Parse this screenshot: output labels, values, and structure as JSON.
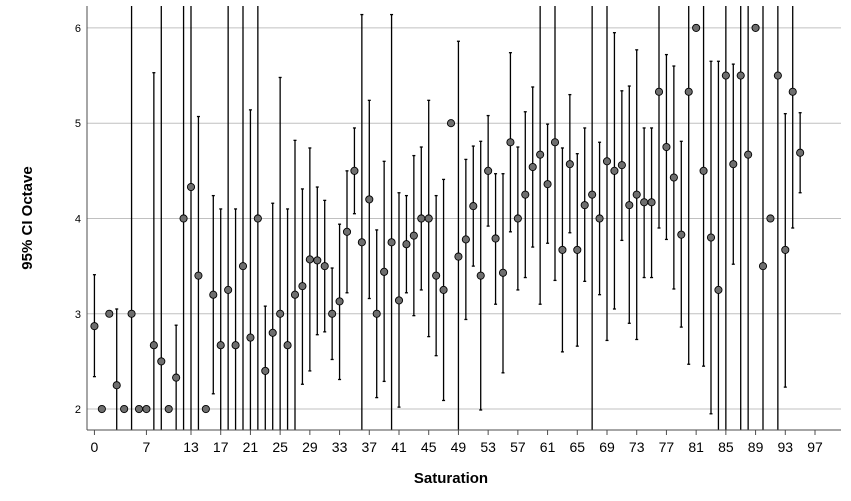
{
  "chart_data": {
    "type": "scatter",
    "title": "",
    "xlabel": "Saturation",
    "ylabel": "95% CI Octave",
    "xlim": [
      -1,
      100.5
    ],
    "ylim": [
      1.78,
      6.23
    ],
    "grid": "horizontal",
    "x_tick_values": [
      0,
      7,
      13,
      17,
      21,
      25,
      29,
      33,
      37,
      41,
      45,
      49,
      53,
      57,
      61,
      65,
      69,
      73,
      77,
      81,
      85,
      89,
      93,
      97
    ],
    "x_tick_labels": [
      "0",
      "7",
      "13",
      "17",
      "21",
      "25",
      "29",
      "33",
      "37",
      "41",
      "45",
      "49",
      "53",
      "57",
      "61",
      "65",
      "69",
      "73",
      "77",
      "81",
      "85",
      "89",
      "93",
      "97"
    ],
    "y_tick_values": [
      2,
      3,
      4,
      5,
      6
    ],
    "y_tick_labels": [
      "2",
      "3",
      "4",
      "5",
      "6"
    ],
    "colors": {
      "marker_fill": "#6e6e6e",
      "marker_stroke": "#000000",
      "error_bar": "#000000",
      "grid": "#c0c0c0",
      "axis": "#4d4d4d"
    },
    "points": [
      {
        "x": 0,
        "y": 2.87,
        "low": 2.34,
        "high": 3.41
      },
      {
        "x": 1,
        "y": 2.0,
        "low": null,
        "high": null
      },
      {
        "x": 2,
        "y": 3.0,
        "low": null,
        "high": null
      },
      {
        "x": 3,
        "y": 2.25,
        "low": 1.78,
        "high": 3.05
      },
      {
        "x": 4,
        "y": 2.0,
        "low": null,
        "high": null
      },
      {
        "x": 5,
        "y": 3.0,
        "low": 1.78,
        "high": 6.23
      },
      {
        "x": 6,
        "y": 2.0,
        "low": null,
        "high": null
      },
      {
        "x": 7,
        "y": 2.0,
        "low": null,
        "high": null
      },
      {
        "x": 8,
        "y": 2.67,
        "low": 1.78,
        "high": 5.53
      },
      {
        "x": 9,
        "y": 2.5,
        "low": 1.78,
        "high": 6.23
      },
      {
        "x": 10,
        "y": 2.0,
        "low": null,
        "high": null
      },
      {
        "x": 11,
        "y": 2.33,
        "low": 1.78,
        "high": 2.88
      },
      {
        "x": 12,
        "y": 4.0,
        "low": 1.78,
        "high": 6.23
      },
      {
        "x": 13,
        "y": 4.33,
        "low": 1.78,
        "high": 6.23
      },
      {
        "x": 14,
        "y": 3.4,
        "low": 1.78,
        "high": 5.07
      },
      {
        "x": 15,
        "y": 2.0,
        "low": null,
        "high": null
      },
      {
        "x": 16,
        "y": 3.2,
        "low": 2.16,
        "high": 4.24
      },
      {
        "x": 17,
        "y": 2.67,
        "low": 1.78,
        "high": 4.1
      },
      {
        "x": 18,
        "y": 3.25,
        "low": 1.78,
        "high": 6.23
      },
      {
        "x": 19,
        "y": 2.67,
        "low": 1.78,
        "high": 4.1
      },
      {
        "x": 20,
        "y": 3.5,
        "low": 1.78,
        "high": 6.23
      },
      {
        "x": 21,
        "y": 2.75,
        "low": 1.78,
        "high": 5.14
      },
      {
        "x": 22,
        "y": 4.0,
        "low": 1.78,
        "high": 6.23
      },
      {
        "x": 23,
        "y": 2.4,
        "low": 1.72,
        "high": 3.08
      },
      {
        "x": 24,
        "y": 2.8,
        "low": 1.78,
        "high": 4.16
      },
      {
        "x": 25,
        "y": 3.0,
        "low": 1.78,
        "high": 5.48
      },
      {
        "x": 26,
        "y": 2.67,
        "low": 1.78,
        "high": 4.1
      },
      {
        "x": 27,
        "y": 3.2,
        "low": 1.78,
        "high": 4.82
      },
      {
        "x": 28,
        "y": 3.29,
        "low": 2.26,
        "high": 4.31
      },
      {
        "x": 29,
        "y": 3.57,
        "low": 2.4,
        "high": 4.74
      },
      {
        "x": 30,
        "y": 3.56,
        "low": 2.78,
        "high": 4.33
      },
      {
        "x": 31,
        "y": 3.5,
        "low": 2.81,
        "high": 4.19
      },
      {
        "x": 32,
        "y": 3.0,
        "low": 2.52,
        "high": 3.48
      },
      {
        "x": 33,
        "y": 3.13,
        "low": 2.31,
        "high": 3.94
      },
      {
        "x": 34,
        "y": 3.86,
        "low": 3.22,
        "high": 4.5
      },
      {
        "x": 35,
        "y": 4.5,
        "low": 4.05,
        "high": 4.95
      },
      {
        "x": 36,
        "y": 3.75,
        "low": 1.78,
        "high": 6.14
      },
      {
        "x": 37,
        "y": 4.2,
        "low": 3.16,
        "high": 5.24
      },
      {
        "x": 38,
        "y": 3.0,
        "low": 2.12,
        "high": 3.88
      },
      {
        "x": 39,
        "y": 3.44,
        "low": 2.29,
        "high": 4.6
      },
      {
        "x": 40,
        "y": 3.75,
        "low": 1.78,
        "high": 6.14
      },
      {
        "x": 41,
        "y": 3.14,
        "low": 2.02,
        "high": 4.27
      },
      {
        "x": 42,
        "y": 3.73,
        "low": 3.22,
        "high": 4.24
      },
      {
        "x": 43,
        "y": 3.82,
        "low": 2.98,
        "high": 4.66
      },
      {
        "x": 44,
        "y": 4.0,
        "low": 3.25,
        "high": 4.75
      },
      {
        "x": 45,
        "y": 4.0,
        "low": 2.76,
        "high": 5.24
      },
      {
        "x": 46,
        "y": 3.4,
        "low": 2.56,
        "high": 4.24
      },
      {
        "x": 47,
        "y": 3.25,
        "low": 2.09,
        "high": 4.41
      },
      {
        "x": 48,
        "y": 5.0,
        "low": null,
        "high": null
      },
      {
        "x": 49,
        "y": 3.6,
        "low": 1.78,
        "high": 5.86
      },
      {
        "x": 50,
        "y": 3.78,
        "low": 2.94,
        "high": 4.62
      },
      {
        "x": 51,
        "y": 4.13,
        "low": 3.5,
        "high": 4.76
      },
      {
        "x": 52,
        "y": 3.4,
        "low": 1.99,
        "high": 4.81
      },
      {
        "x": 53,
        "y": 4.5,
        "low": 3.92,
        "high": 5.08
      },
      {
        "x": 54,
        "y": 3.79,
        "low": 3.1,
        "high": 4.47
      },
      {
        "x": 55,
        "y": 3.43,
        "low": 2.38,
        "high": 4.47
      },
      {
        "x": 56,
        "y": 4.8,
        "low": 3.86,
        "high": 5.74
      },
      {
        "x": 57,
        "y": 4.0,
        "low": 3.25,
        "high": 4.75
      },
      {
        "x": 58,
        "y": 4.25,
        "low": 3.38,
        "high": 5.12
      },
      {
        "x": 59,
        "y": 4.54,
        "low": 3.7,
        "high": 5.38
      },
      {
        "x": 60,
        "y": 4.67,
        "low": 3.1,
        "high": 6.23
      },
      {
        "x": 61,
        "y": 4.36,
        "low": 3.74,
        "high": 4.99
      },
      {
        "x": 62,
        "y": 4.8,
        "low": 3.35,
        "high": 6.23
      },
      {
        "x": 63,
        "y": 3.67,
        "low": 2.6,
        "high": 4.74
      },
      {
        "x": 64,
        "y": 4.57,
        "low": 3.85,
        "high": 5.3
      },
      {
        "x": 65,
        "y": 3.67,
        "low": 2.66,
        "high": 4.68
      },
      {
        "x": 66,
        "y": 4.14,
        "low": 3.34,
        "high": 4.95
      },
      {
        "x": 67,
        "y": 4.25,
        "low": 1.78,
        "high": 6.23
      },
      {
        "x": 68,
        "y": 4.0,
        "low": 3.2,
        "high": 4.8
      },
      {
        "x": 69,
        "y": 4.6,
        "low": 2.72,
        "high": 6.23
      },
      {
        "x": 70,
        "y": 4.5,
        "low": 3.05,
        "high": 5.95
      },
      {
        "x": 71,
        "y": 4.56,
        "low": 3.77,
        "high": 5.34
      },
      {
        "x": 72,
        "y": 4.14,
        "low": 2.9,
        "high": 5.39
      },
      {
        "x": 73,
        "y": 4.25,
        "low": 2.73,
        "high": 5.77
      },
      {
        "x": 74,
        "y": 4.17,
        "low": 3.38,
        "high": 4.95
      },
      {
        "x": 75,
        "y": 4.17,
        "low": 3.38,
        "high": 4.95
      },
      {
        "x": 76,
        "y": 5.33,
        "low": 3.9,
        "high": 6.23
      },
      {
        "x": 77,
        "y": 4.75,
        "low": 3.78,
        "high": 5.72
      },
      {
        "x": 78,
        "y": 4.43,
        "low": 3.26,
        "high": 5.6
      },
      {
        "x": 79,
        "y": 3.83,
        "low": 2.86,
        "high": 4.81
      },
      {
        "x": 80,
        "y": 5.33,
        "low": 2.47,
        "high": 6.23
      },
      {
        "x": 81,
        "y": 6.0,
        "low": null,
        "high": null
      },
      {
        "x": 82,
        "y": 4.5,
        "low": 2.45,
        "high": 6.23
      },
      {
        "x": 83,
        "y": 3.8,
        "low": 1.95,
        "high": 5.65
      },
      {
        "x": 84,
        "y": 3.25,
        "low": 1.78,
        "high": 5.65
      },
      {
        "x": 85,
        "y": 5.5,
        "low": 1.78,
        "high": 6.23
      },
      {
        "x": 86,
        "y": 4.57,
        "low": 3.52,
        "high": 5.62
      },
      {
        "x": 87,
        "y": 5.5,
        "low": 1.78,
        "high": 6.23
      },
      {
        "x": 88,
        "y": 4.67,
        "low": 1.78,
        "high": 6.23
      },
      {
        "x": 89,
        "y": 6.0,
        "low": null,
        "high": null
      },
      {
        "x": 90,
        "y": 3.5,
        "low": 1.78,
        "high": 6.23
      },
      {
        "x": 91,
        "y": 4.0,
        "low": null,
        "high": null
      },
      {
        "x": 92,
        "y": 5.5,
        "low": 1.78,
        "high": 6.23
      },
      {
        "x": 93,
        "y": 3.67,
        "low": 2.23,
        "high": 5.1
      },
      {
        "x": 94,
        "y": 5.33,
        "low": 3.9,
        "high": 6.23
      },
      {
        "x": 95,
        "y": 4.69,
        "low": 4.27,
        "high": 5.11
      }
    ]
  }
}
